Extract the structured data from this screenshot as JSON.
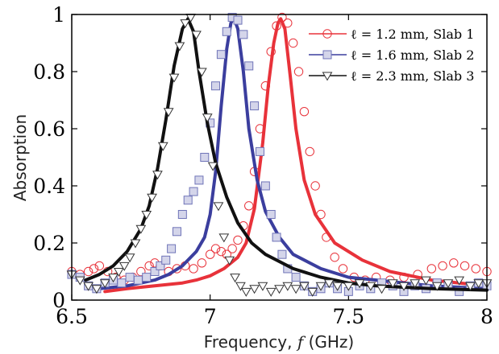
{
  "chart_data": {
    "type": "line",
    "xlabel": "Frequency, f (GHz)",
    "xlabel_parts": {
      "prefix": "Frequency, ",
      "var": "f",
      "suffix": " (GHz)"
    },
    "ylabel": "Absorption",
    "xlim": [
      6.5,
      8
    ],
    "ylim": [
      0,
      1
    ],
    "xticks": [
      "6.5",
      "7",
      "7.5",
      "8"
    ],
    "yticks": [
      "0",
      "0.2",
      "0.4",
      "0.6",
      "0.8",
      "1"
    ],
    "grid": false,
    "legend_position": "top-right",
    "series": [
      {
        "name": "ℓ = 1.2 mm,  Slab 1",
        "color": "#e8323a",
        "marker": "circle",
        "line_points": [
          [
            6.62,
            0.03
          ],
          [
            6.7,
            0.04
          ],
          [
            6.8,
            0.05
          ],
          [
            6.9,
            0.06
          ],
          [
            6.95,
            0.07
          ],
          [
            7.0,
            0.085
          ],
          [
            7.05,
            0.11
          ],
          [
            7.1,
            0.15
          ],
          [
            7.13,
            0.2
          ],
          [
            7.16,
            0.32
          ],
          [
            7.19,
            0.55
          ],
          [
            7.21,
            0.75
          ],
          [
            7.23,
            0.9
          ],
          [
            7.245,
            0.97
          ],
          [
            7.255,
            0.985
          ],
          [
            7.27,
            0.95
          ],
          [
            7.29,
            0.78
          ],
          [
            7.31,
            0.6
          ],
          [
            7.34,
            0.42
          ],
          [
            7.38,
            0.3
          ],
          [
            7.45,
            0.2
          ],
          [
            7.55,
            0.14
          ],
          [
            7.65,
            0.1
          ],
          [
            7.8,
            0.07
          ],
          [
            7.9,
            0.06
          ],
          [
            8.0,
            0.05
          ]
        ],
        "marker_points": [
          [
            6.5,
            0.1
          ],
          [
            6.53,
            0.09
          ],
          [
            6.56,
            0.1
          ],
          [
            6.58,
            0.11
          ],
          [
            6.6,
            0.12
          ],
          [
            6.63,
            0.1
          ],
          [
            6.66,
            0.08
          ],
          [
            6.69,
            0.07
          ],
          [
            6.72,
            0.08
          ],
          [
            6.75,
            0.1
          ],
          [
            6.78,
            0.12
          ],
          [
            6.8,
            0.13
          ],
          [
            6.82,
            0.12
          ],
          [
            6.85,
            0.1
          ],
          [
            6.88,
            0.11
          ],
          [
            6.91,
            0.12
          ],
          [
            6.94,
            0.11
          ],
          [
            6.97,
            0.13
          ],
          [
            7.0,
            0.16
          ],
          [
            7.02,
            0.18
          ],
          [
            7.04,
            0.17
          ],
          [
            7.06,
            0.16
          ],
          [
            7.08,
            0.18
          ],
          [
            7.1,
            0.21
          ],
          [
            7.12,
            0.26
          ],
          [
            7.14,
            0.33
          ],
          [
            7.16,
            0.45
          ],
          [
            7.18,
            0.6
          ],
          [
            7.2,
            0.75
          ],
          [
            7.22,
            0.87
          ],
          [
            7.24,
            0.96
          ],
          [
            7.26,
            0.99
          ],
          [
            7.28,
            0.97
          ],
          [
            7.3,
            0.9
          ],
          [
            7.32,
            0.8
          ],
          [
            7.34,
            0.66
          ],
          [
            7.36,
            0.52
          ],
          [
            7.38,
            0.4
          ],
          [
            7.4,
            0.3
          ],
          [
            7.42,
            0.22
          ],
          [
            7.45,
            0.15
          ],
          [
            7.48,
            0.11
          ],
          [
            7.52,
            0.08
          ],
          [
            7.56,
            0.07
          ],
          [
            7.6,
            0.08
          ],
          [
            7.65,
            0.07
          ],
          [
            7.7,
            0.08
          ],
          [
            7.75,
            0.09
          ],
          [
            7.8,
            0.11
          ],
          [
            7.84,
            0.12
          ],
          [
            7.88,
            0.13
          ],
          [
            7.92,
            0.12
          ],
          [
            7.96,
            0.11
          ],
          [
            8.0,
            0.1
          ]
        ]
      },
      {
        "name": "ℓ = 1.6 mm,  Slab 2",
        "color": "#3b3e9e",
        "marker": "square",
        "line_points": [
          [
            6.6,
            0.04
          ],
          [
            6.7,
            0.05
          ],
          [
            6.8,
            0.07
          ],
          [
            6.85,
            0.09
          ],
          [
            6.9,
            0.12
          ],
          [
            6.95,
            0.17
          ],
          [
            6.98,
            0.22
          ],
          [
            7.0,
            0.3
          ],
          [
            7.02,
            0.45
          ],
          [
            7.04,
            0.68
          ],
          [
            7.06,
            0.88
          ],
          [
            7.075,
            0.97
          ],
          [
            7.085,
            0.99
          ],
          [
            7.1,
            0.95
          ],
          [
            7.12,
            0.8
          ],
          [
            7.14,
            0.6
          ],
          [
            7.17,
            0.42
          ],
          [
            7.2,
            0.31
          ],
          [
            7.25,
            0.22
          ],
          [
            7.3,
            0.16
          ],
          [
            7.4,
            0.11
          ],
          [
            7.5,
            0.08
          ],
          [
            7.6,
            0.07
          ],
          [
            7.7,
            0.06
          ],
          [
            7.8,
            0.05
          ],
          [
            8.0,
            0.04
          ]
        ],
        "marker_points": [
          [
            6.5,
            0.09
          ],
          [
            6.53,
            0.08
          ],
          [
            6.56,
            0.05
          ],
          [
            6.59,
            0.04
          ],
          [
            6.62,
            0.06
          ],
          [
            6.65,
            0.07
          ],
          [
            6.68,
            0.06
          ],
          [
            6.71,
            0.08
          ],
          [
            6.74,
            0.07
          ],
          [
            6.77,
            0.08
          ],
          [
            6.8,
            0.1
          ],
          [
            6.82,
            0.12
          ],
          [
            6.84,
            0.14
          ],
          [
            6.86,
            0.18
          ],
          [
            6.88,
            0.24
          ],
          [
            6.9,
            0.3
          ],
          [
            6.92,
            0.35
          ],
          [
            6.94,
            0.38
          ],
          [
            6.96,
            0.42
          ],
          [
            6.98,
            0.5
          ],
          [
            7.0,
            0.62
          ],
          [
            7.02,
            0.75
          ],
          [
            7.04,
            0.86
          ],
          [
            7.06,
            0.94
          ],
          [
            7.08,
            0.99
          ],
          [
            7.1,
            0.98
          ],
          [
            7.12,
            0.93
          ],
          [
            7.14,
            0.82
          ],
          [
            7.16,
            0.68
          ],
          [
            7.18,
            0.52
          ],
          [
            7.2,
            0.4
          ],
          [
            7.22,
            0.3
          ],
          [
            7.24,
            0.22
          ],
          [
            7.26,
            0.16
          ],
          [
            7.28,
            0.11
          ],
          [
            7.31,
            0.08
          ],
          [
            7.34,
            0.05
          ],
          [
            7.37,
            0.03
          ],
          [
            7.4,
            0.04
          ],
          [
            7.43,
            0.06
          ],
          [
            7.46,
            0.04
          ],
          [
            7.5,
            0.03
          ],
          [
            7.54,
            0.05
          ],
          [
            7.58,
            0.04
          ],
          [
            7.62,
            0.06
          ],
          [
            7.66,
            0.05
          ],
          [
            7.7,
            0.03
          ],
          [
            7.74,
            0.05
          ],
          [
            7.78,
            0.04
          ],
          [
            7.82,
            0.06
          ],
          [
            7.86,
            0.05
          ],
          [
            7.9,
            0.03
          ],
          [
            7.94,
            0.05
          ],
          [
            7.97,
            0.06
          ],
          [
            8.0,
            0.05
          ]
        ]
      },
      {
        "name": "ℓ = 2.3 mm,  Slab 3",
        "color": "#111111",
        "marker": "triangle-down",
        "line_points": [
          [
            6.55,
            0.07
          ],
          [
            6.6,
            0.09
          ],
          [
            6.65,
            0.12
          ],
          [
            6.7,
            0.17
          ],
          [
            6.75,
            0.25
          ],
          [
            6.78,
            0.33
          ],
          [
            6.81,
            0.46
          ],
          [
            6.84,
            0.63
          ],
          [
            6.87,
            0.82
          ],
          [
            6.9,
            0.95
          ],
          [
            6.92,
            0.985
          ],
          [
            6.94,
            0.94
          ],
          [
            6.96,
            0.8
          ],
          [
            6.99,
            0.62
          ],
          [
            7.02,
            0.48
          ],
          [
            7.06,
            0.36
          ],
          [
            7.1,
            0.27
          ],
          [
            7.15,
            0.2
          ],
          [
            7.2,
            0.16
          ],
          [
            7.3,
            0.11
          ],
          [
            7.4,
            0.08
          ],
          [
            7.5,
            0.06
          ],
          [
            7.6,
            0.05
          ],
          [
            7.7,
            0.045
          ],
          [
            7.8,
            0.04
          ],
          [
            8.0,
            0.035
          ]
        ],
        "marker_points": [
          [
            6.5,
            0.09
          ],
          [
            6.53,
            0.07
          ],
          [
            6.56,
            0.05
          ],
          [
            6.59,
            0.04
          ],
          [
            6.62,
            0.06
          ],
          [
            6.65,
            0.08
          ],
          [
            6.67,
            0.1
          ],
          [
            6.69,
            0.12
          ],
          [
            6.71,
            0.15
          ],
          [
            6.73,
            0.2
          ],
          [
            6.75,
            0.25
          ],
          [
            6.77,
            0.3
          ],
          [
            6.79,
            0.36
          ],
          [
            6.81,
            0.44
          ],
          [
            6.83,
            0.54
          ],
          [
            6.85,
            0.66
          ],
          [
            6.87,
            0.78
          ],
          [
            6.89,
            0.89
          ],
          [
            6.91,
            0.97
          ],
          [
            6.93,
            0.99
          ],
          [
            6.95,
            0.93
          ],
          [
            6.97,
            0.8
          ],
          [
            6.99,
            0.64
          ],
          [
            7.01,
            0.47
          ],
          [
            7.03,
            0.33
          ],
          [
            7.05,
            0.22
          ],
          [
            7.07,
            0.14
          ],
          [
            7.09,
            0.08
          ],
          [
            7.11,
            0.05
          ],
          [
            7.13,
            0.03
          ],
          [
            7.16,
            0.04
          ],
          [
            7.19,
            0.05
          ],
          [
            7.22,
            0.03
          ],
          [
            7.25,
            0.04
          ],
          [
            7.28,
            0.05
          ],
          [
            7.31,
            0.04
          ],
          [
            7.34,
            0.05
          ],
          [
            7.37,
            0.03
          ],
          [
            7.4,
            0.05
          ],
          [
            7.43,
            0.06
          ],
          [
            7.46,
            0.05
          ],
          [
            7.5,
            0.05
          ],
          [
            7.54,
            0.06
          ],
          [
            7.58,
            0.05
          ],
          [
            7.62,
            0.04
          ],
          [
            7.66,
            0.06
          ],
          [
            7.7,
            0.05
          ],
          [
            7.74,
            0.06
          ],
          [
            7.78,
            0.07
          ],
          [
            7.82,
            0.05
          ],
          [
            7.86,
            0.06
          ],
          [
            7.9,
            0.07
          ],
          [
            7.94,
            0.05
          ],
          [
            7.97,
            0.06
          ],
          [
            8.0,
            0.06
          ]
        ]
      }
    ]
  }
}
